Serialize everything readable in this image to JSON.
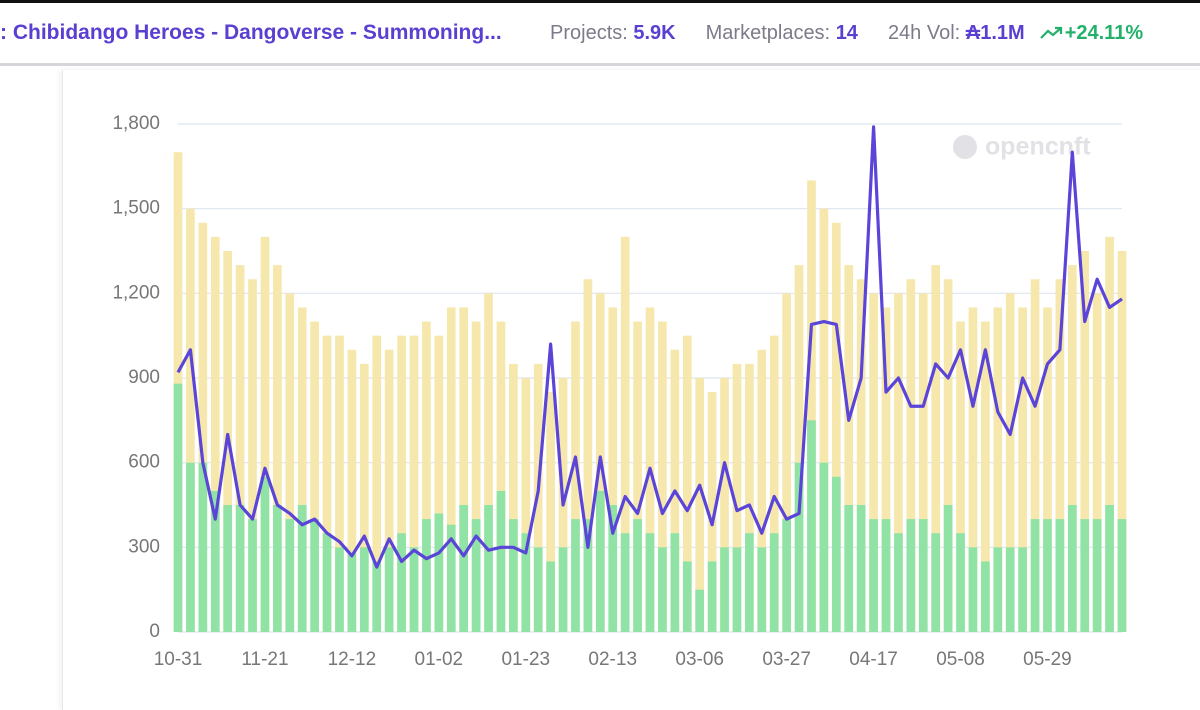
{
  "header": {
    "title": ": Chibidango Heroes - Dangoverse - Summoning...",
    "stats": [
      {
        "label": "Projects:",
        "value": "5.9K"
      },
      {
        "label": "Marketplaces:",
        "value": "14"
      },
      {
        "label": "24h Vol:",
        "value": "₳1.1M"
      }
    ],
    "change": "+24.11%"
  },
  "chart_data": {
    "type": "bar-line",
    "watermark": "opencnft",
    "categories": [
      "10-31",
      null,
      null,
      null,
      null,
      null,
      null,
      "11-21",
      null,
      null,
      null,
      null,
      null,
      null,
      "12-12",
      null,
      null,
      null,
      null,
      null,
      null,
      "01-02",
      null,
      null,
      null,
      null,
      null,
      null,
      "01-23",
      null,
      null,
      null,
      null,
      null,
      null,
      "02-13",
      null,
      null,
      null,
      null,
      null,
      null,
      "03-06",
      null,
      null,
      null,
      null,
      null,
      null,
      "03-27",
      null,
      null,
      null,
      null,
      null,
      null,
      "04-17",
      null,
      null,
      null,
      null,
      null,
      null,
      "05-08",
      null,
      null,
      null,
      null,
      null,
      null,
      "05-29",
      null,
      null,
      null,
      null,
      null,
      null
    ],
    "series": [
      {
        "kind": "bar",
        "color": "#f6e8ad",
        "values": [
          1700,
          1500,
          1450,
          1400,
          1350,
          1300,
          1250,
          1400,
          1300,
          1200,
          1150,
          1100,
          1050,
          1050,
          1000,
          950,
          1050,
          1000,
          1050,
          1050,
          1100,
          1050,
          1150,
          1150,
          1100,
          1200,
          1100,
          950,
          900,
          950,
          850,
          900,
          1100,
          1250,
          1200,
          1150,
          1400,
          1100,
          1150,
          1100,
          1000,
          1050,
          900,
          850,
          900,
          950,
          950,
          1000,
          1050,
          1200,
          1300,
          1600,
          1500,
          1450,
          1300,
          1250,
          1200,
          1150,
          1200,
          1250,
          1200,
          1300,
          1250,
          1100,
          1150,
          1100,
          1150,
          1200,
          1150,
          1250,
          1150,
          1250,
          1300,
          1350,
          1200,
          1400,
          1350
        ]
      },
      {
        "kind": "bar",
        "color": "#90e3a4",
        "values": [
          880,
          600,
          600,
          500,
          450,
          450,
          400,
          550,
          450,
          400,
          450,
          400,
          350,
          300,
          280,
          300,
          250,
          300,
          350,
          300,
          400,
          420,
          380,
          450,
          400,
          450,
          500,
          400,
          350,
          300,
          250,
          300,
          400,
          400,
          500,
          450,
          350,
          400,
          350,
          300,
          350,
          250,
          150,
          250,
          300,
          300,
          350,
          300,
          350,
          400,
          600,
          750,
          600,
          550,
          450,
          450,
          400,
          400,
          350,
          400,
          400,
          350,
          450,
          350,
          300,
          250,
          300,
          300,
          300,
          400,
          400,
          400,
          450,
          400,
          400,
          450,
          400
        ]
      },
      {
        "kind": "line",
        "color": "#5b45d8",
        "values": [
          920,
          1000,
          600,
          400,
          700,
          450,
          400,
          580,
          450,
          420,
          380,
          400,
          350,
          320,
          270,
          340,
          230,
          330,
          250,
          290,
          260,
          280,
          330,
          270,
          340,
          290,
          300,
          300,
          280,
          500,
          1020,
          450,
          620,
          300,
          620,
          350,
          480,
          420,
          580,
          420,
          500,
          430,
          520,
          380,
          600,
          430,
          450,
          350,
          480,
          400,
          420,
          1090,
          1100,
          1090,
          750,
          900,
          1790,
          850,
          900,
          800,
          800,
          950,
          900,
          1000,
          800,
          1000,
          780,
          700,
          900,
          800,
          950,
          1000,
          1700,
          1100,
          1250,
          1150,
          1180
        ]
      }
    ],
    "ylim": [
      0,
      1800
    ],
    "yticks": [
      0,
      300,
      600,
      900,
      {
        "value": 1200,
        "label": "1,200"
      },
      {
        "value": 1500,
        "label": "1,500"
      },
      {
        "value": 1800,
        "label": "1,800"
      }
    ],
    "grid": true
  }
}
